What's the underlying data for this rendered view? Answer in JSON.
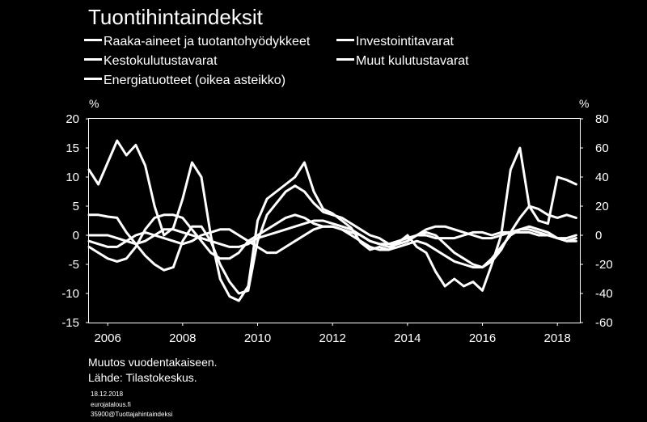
{
  "chart_data": {
    "type": "line",
    "title": "Tuontihintaindeksit",
    "ylabel_left": "%",
    "ylabel_right": "%",
    "ylim_left": [
      -15,
      20
    ],
    "ylim_right": [
      -60,
      80
    ],
    "yticks_left": [
      20,
      15,
      10,
      5,
      0,
      -5,
      -10,
      -15
    ],
    "yticks_right": [
      80,
      60,
      40,
      20,
      0,
      -20,
      -40,
      -60
    ],
    "xlim": [
      2005.5,
      2018.6
    ],
    "xticks": [
      2006,
      2008,
      2010,
      2012,
      2014,
      2016,
      2018
    ],
    "xtick_labels": [
      "2006",
      "2008",
      "2010",
      "2012",
      "2014",
      "2016",
      "2018"
    ],
    "grid": false,
    "legend_position": "top",
    "series_color": "#ffffff",
    "series": [
      {
        "name": "Raaka-aineet ja tuotantohyödykkeet",
        "axis": "left",
        "x": [
          2005.5,
          2005.75,
          2006,
          2006.25,
          2006.5,
          2006.75,
          2007,
          2007.25,
          2007.5,
          2007.75,
          2008,
          2008.25,
          2008.5,
          2008.75,
          2009,
          2009.25,
          2009.5,
          2009.75,
          2010,
          2010.25,
          2010.5,
          2010.75,
          2011,
          2011.25,
          2011.5,
          2011.75,
          2012,
          2012.25,
          2012.5,
          2012.75,
          2013,
          2013.25,
          2013.5,
          2013.75,
          2014,
          2014.25,
          2014.5,
          2014.75,
          2015,
          2015.25,
          2015.5,
          2015.75,
          2016,
          2016.25,
          2016.5,
          2016.75,
          2017,
          2017.25,
          2017.5,
          2017.75,
          2018,
          2018.25,
          2018.5
        ],
        "values": [
          3.5,
          3.5,
          3.2,
          3,
          0.5,
          -1.5,
          -3.5,
          -5,
          -6,
          -5.5,
          -1,
          1.5,
          1.5,
          -1,
          -5,
          -8,
          -10,
          -9.5,
          -1,
          3.5,
          5.5,
          7.5,
          8.5,
          7.5,
          5.5,
          4,
          3.5,
          3,
          2,
          1,
          0,
          -0.5,
          -1.5,
          -1.5,
          -1,
          0,
          0.5,
          0,
          -1.5,
          -3,
          -4,
          -5,
          -5.5,
          -4.5,
          -2.5,
          0.5,
          3,
          5,
          4.5,
          3.5,
          3,
          3.5,
          3
        ]
      },
      {
        "name": "Investointitavarat",
        "axis": "left",
        "x": [
          2005.5,
          2005.75,
          2006,
          2006.25,
          2006.5,
          2006.75,
          2007,
          2007.25,
          2007.5,
          2007.75,
          2008,
          2008.25,
          2008.5,
          2008.75,
          2009,
          2009.25,
          2009.5,
          2009.75,
          2010,
          2010.25,
          2010.5,
          2010.75,
          2011,
          2011.25,
          2011.5,
          2011.75,
          2012,
          2012.25,
          2012.5,
          2012.75,
          2013,
          2013.25,
          2013.5,
          2013.75,
          2014,
          2014.25,
          2014.5,
          2014.75,
          2015,
          2015.25,
          2015.5,
          2015.75,
          2016,
          2016.25,
          2016.5,
          2016.75,
          2017,
          2017.25,
          2017.5,
          2017.75,
          2018,
          2018.25,
          2018.5
        ],
        "values": [
          0,
          0,
          0,
          -0.5,
          -1,
          -1.5,
          -1,
          0,
          1,
          1,
          0.5,
          0,
          -0.5,
          -1,
          -1.5,
          -2,
          -2,
          -1.5,
          -0.5,
          0,
          0.5,
          1,
          1.5,
          2,
          2.5,
          2.5,
          2,
          1.5,
          1,
          0,
          -1,
          -1.5,
          -1.5,
          -1,
          -0.5,
          0,
          0,
          -0.5,
          -0.5,
          -0.5,
          0,
          0.5,
          0.5,
          0,
          0.5,
          0.5,
          0.5,
          0.5,
          0,
          0,
          -0.5,
          -0.5,
          0
        ]
      },
      {
        "name": "Kestokulutustavarat",
        "axis": "left",
        "x": [
          2005.5,
          2005.75,
          2006,
          2006.25,
          2006.5,
          2006.75,
          2007,
          2007.25,
          2007.5,
          2007.75,
          2008,
          2008.25,
          2008.5,
          2008.75,
          2009,
          2009.25,
          2009.5,
          2009.75,
          2010,
          2010.25,
          2010.5,
          2010.75,
          2011,
          2011.25,
          2011.5,
          2011.75,
          2012,
          2012.25,
          2012.5,
          2012.75,
          2013,
          2013.25,
          2013.5,
          2013.75,
          2014,
          2014.25,
          2014.5,
          2014.75,
          2015,
          2015.25,
          2015.5,
          2015.75,
          2016,
          2016.25,
          2016.5,
          2016.75,
          2017,
          2017.25,
          2017.5,
          2017.75,
          2018,
          2018.25,
          2018.5
        ],
        "values": [
          -2,
          -3,
          -4,
          -4.5,
          -4,
          -2,
          1,
          3,
          3.5,
          3.5,
          3,
          1,
          -1,
          -3,
          -4,
          -4,
          -3,
          -1,
          0,
          1,
          2,
          3,
          3.5,
          3,
          2,
          1.5,
          1.5,
          1,
          0.5,
          0,
          -1,
          -1.5,
          -2,
          -1.5,
          -1,
          0,
          1,
          1.5,
          1.5,
          1,
          0.5,
          0,
          -0.5,
          -0.5,
          0,
          0.5,
          1,
          1,
          0.5,
          0,
          -0.5,
          -1,
          -0.5
        ]
      },
      {
        "name": "Muut kulutustavarat",
        "axis": "left",
        "x": [
          2005.5,
          2005.75,
          2006,
          2006.25,
          2006.5,
          2006.75,
          2007,
          2007.25,
          2007.5,
          2007.75,
          2008,
          2008.25,
          2008.5,
          2008.75,
          2009,
          2009.25,
          2009.5,
          2009.75,
          2010,
          2010.25,
          2010.5,
          2010.75,
          2011,
          2011.25,
          2011.5,
          2011.75,
          2012,
          2012.25,
          2012.5,
          2012.75,
          2013,
          2013.25,
          2013.5,
          2013.75,
          2014,
          2014.25,
          2014.5,
          2014.75,
          2015,
          2015.25,
          2015.5,
          2015.75,
          2016,
          2016.25,
          2016.5,
          2016.75,
          2017,
          2017.25,
          2017.5,
          2017.75,
          2018,
          2018.25,
          2018.5
        ],
        "values": [
          -1,
          -1.5,
          -2,
          -2,
          -1,
          0,
          0.5,
          0,
          -0.5,
          -1,
          -1.5,
          -1,
          0,
          0.5,
          1,
          1,
          0,
          -1,
          -2,
          -3,
          -3,
          -2,
          -1,
          0,
          1,
          1.5,
          1.5,
          1,
          0,
          -1,
          -2,
          -2.5,
          -2.5,
          -2,
          -1.5,
          -1,
          -1.5,
          -2.5,
          -3.5,
          -4.5,
          -5,
          -5.5,
          -5.5,
          -4,
          -2,
          0,
          1,
          1.5,
          1,
          0.5,
          -0.5,
          -1,
          -1
        ]
      },
      {
        "name": "Energiatuotteet (oikea asteikko)",
        "axis": "right",
        "x": [
          2005.5,
          2005.75,
          2006,
          2006.25,
          2006.5,
          2006.75,
          2007,
          2007.25,
          2007.5,
          2007.75,
          2008,
          2008.25,
          2008.5,
          2008.75,
          2009,
          2009.25,
          2009.5,
          2009.75,
          2010,
          2010.25,
          2010.5,
          2010.75,
          2011,
          2011.25,
          2011.5,
          2011.75,
          2012,
          2012.25,
          2012.5,
          2012.75,
          2013,
          2013.25,
          2013.5,
          2013.75,
          2014,
          2014.25,
          2014.5,
          2014.75,
          2015,
          2015.25,
          2015.5,
          2015.75,
          2016,
          2016.25,
          2016.5,
          2016.75,
          2017,
          2017.25,
          2017.5,
          2017.75,
          2018,
          2018.25,
          2018.5
        ],
        "values": [
          45,
          35,
          50,
          65,
          55,
          62,
          48,
          20,
          0,
          5,
          25,
          50,
          40,
          0,
          -30,
          -42,
          -45,
          -35,
          10,
          25,
          30,
          35,
          40,
          50,
          30,
          18,
          15,
          10,
          5,
          -5,
          -10,
          -8,
          -10,
          -5,
          0,
          -8,
          -12,
          -25,
          -35,
          -30,
          -35,
          -32,
          -38,
          -20,
          0,
          45,
          60,
          20,
          10,
          8,
          40,
          38,
          35
        ]
      }
    ],
    "annotations": [
      "Muutos vuodentakaiseen.",
      "Lähde: Tilastokeskus."
    ]
  },
  "footer": {
    "date": "18.12.2018",
    "site": "eurojatalous.fi",
    "code": "35900@Tuottajahintaindeksi"
  }
}
